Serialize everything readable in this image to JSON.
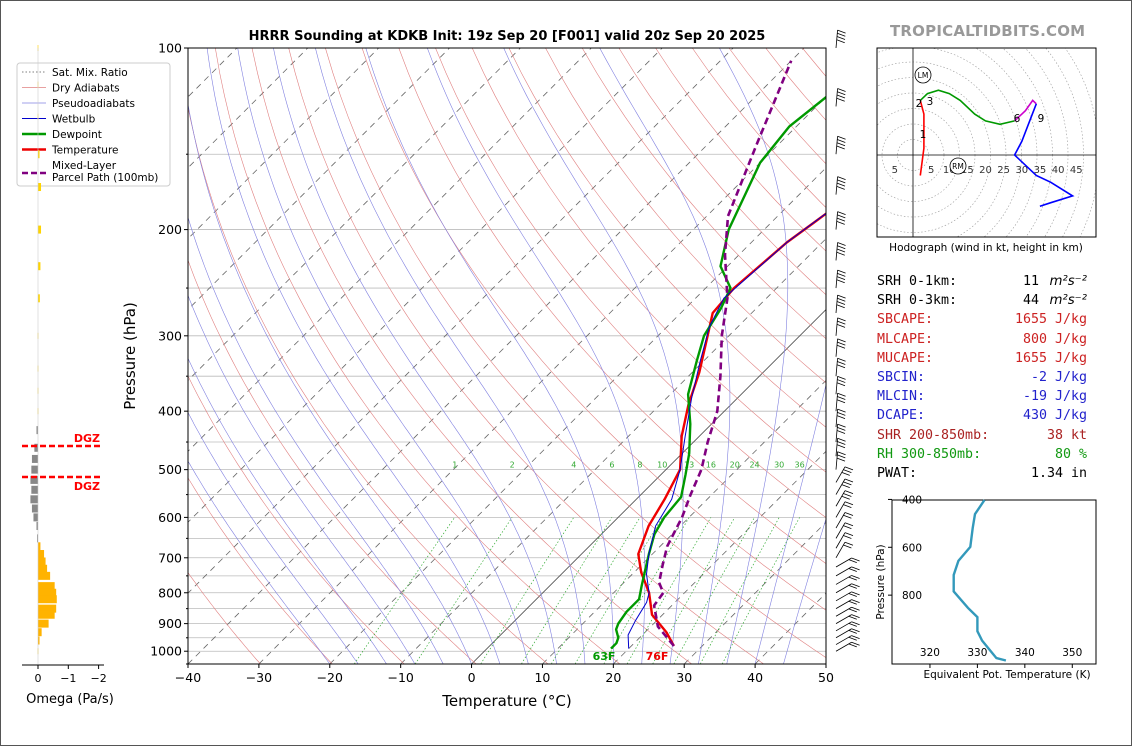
{
  "page": {
    "title": "HRRR Sounding at KDKB Init: 19z Sep 20 [F001] valid 20z Sep 20 2025",
    "brand": "TROPICALTIDBITS.COM"
  },
  "chart_data": [
    {
      "name": "skew-t",
      "type": "line",
      "xlabel": "Temperature (°C)",
      "ylabel": "Pressure (hPa)",
      "xlim": [
        -40,
        50
      ],
      "ylim": [
        1050,
        100
      ],
      "y_scale": "log",
      "x_ticks": [
        "−40",
        "−30",
        "−20",
        "−10",
        "0",
        "10",
        "20",
        "30",
        "40",
        "50"
      ],
      "y_ticks": [
        "100",
        "200",
        "300",
        "400",
        "500",
        "600",
        "700",
        "800",
        "900",
        "1000"
      ],
      "legend": {
        "placement": "top-left",
        "entries": [
          "Sat. Mix. Ratio",
          "Dry Adiabats",
          "Pseudoadiabats",
          "Wetbulb",
          "Dewpoint",
          "Temperature",
          "Mixed-Layer Parcel Path (100mb)"
        ]
      },
      "mixing_ratio_labels": [
        "1",
        "2",
        "4",
        "6",
        "8",
        "10",
        "13",
        "16",
        "20",
        "24",
        "30",
        "36"
      ],
      "surface_labels": {
        "dewpoint": "63F",
        "temperature": "76F"
      },
      "series": [
        {
          "name": "Temperature",
          "color": "#ee0000",
          "points": [
            [
              26,
              980
            ],
            [
              23,
              930
            ],
            [
              18.5,
              870
            ],
            [
              15,
              800
            ],
            [
              11,
              740
            ],
            [
              8,
              690
            ],
            [
              5.5,
              620
            ],
            [
              4,
              560
            ],
            [
              2,
              500
            ],
            [
              -2.5,
              440
            ],
            [
              -6,
              390
            ],
            [
              -9,
              345
            ],
            [
              -13,
              300
            ],
            [
              -15.5,
              275
            ],
            [
              -16,
              250
            ],
            [
              -15,
              210
            ],
            [
              -14,
              195
            ],
            [
              -11,
              155
            ],
            [
              -8,
              125
            ],
            [
              -6,
              110
            ],
            [
              -5,
              100
            ]
          ]
        },
        {
          "name": "Dewpoint",
          "color": "#009900",
          "points": [
            [
              17.5,
              990
            ],
            [
              17.5,
              970
            ],
            [
              17,
              950
            ],
            [
              15.5,
              920
            ],
            [
              15,
              900
            ],
            [
              14.5,
              860
            ],
            [
              14.5,
              820
            ],
            [
              13,
              780
            ],
            [
              11.5,
              740
            ],
            [
              9.5,
              690
            ],
            [
              7.5,
              640
            ],
            [
              6.5,
              600
            ],
            [
              6,
              555
            ],
            [
              3.5,
              510
            ],
            [
              1,
              470
            ],
            [
              -3,
              420
            ],
            [
              -7.5,
              375
            ],
            [
              -11,
              330
            ],
            [
              -13.5,
              300
            ],
            [
              -15,
              270
            ],
            [
              -16.5,
              250
            ],
            [
              -21,
              230
            ],
            [
              -25,
              200
            ],
            [
              -30,
              155
            ],
            [
              -31,
              135
            ],
            [
              -29.5,
              115
            ],
            [
              -27,
              100
            ]
          ]
        },
        {
          "name": "Wetbulb",
          "color": "#0000cc",
          "points": [
            [
              20,
              990
            ],
            [
              18,
              940
            ],
            [
              17,
              890
            ],
            [
              16,
              830
            ],
            [
              15,
              800
            ],
            [
              12,
              745
            ],
            [
              9.5,
              690
            ],
            [
              6.5,
              620
            ],
            [
              5,
              560
            ],
            [
              2,
              500
            ],
            [
              -2,
              440
            ],
            [
              -6.5,
              380
            ],
            [
              -10.5,
              330
            ],
            [
              -14,
              290
            ],
            [
              -16,
              260
            ],
            [
              -15,
              210
            ],
            [
              -11,
              155
            ],
            [
              -7,
              115
            ],
            [
              -5,
              100
            ]
          ]
        },
        {
          "name": "Mixed-Layer Parcel Path (100mb)",
          "color": "#800080",
          "points": [
            [
              26,
              980
            ],
            [
              21,
              910
            ],
            [
              17.5,
              840
            ],
            [
              17,
              800
            ],
            [
              15,
              770
            ],
            [
              13,
              720
            ],
            [
              11,
              670
            ],
            [
              9,
              600
            ],
            [
              7,
              550
            ],
            [
              5,
              500
            ],
            [
              2,
              450
            ],
            [
              -1,
              400
            ],
            [
              -5.5,
              350
            ],
            [
              -11,
              300
            ],
            [
              -15.5,
              260
            ],
            [
              -22,
              220
            ],
            [
              -27,
              190
            ],
            [
              -33,
              145
            ],
            [
              -40,
              105
            ]
          ]
        }
      ]
    },
    {
      "name": "hodograph",
      "type": "line",
      "xlabel": "Hodograph (wind in kt, height in km)",
      "x_ticks": [
        "5",
        "5",
        "10",
        "15",
        "20",
        "25",
        "30",
        "35",
        "40",
        "45"
      ],
      "markers": [
        "LM",
        "RM"
      ],
      "height_labels": [
        "1",
        "2",
        "3",
        "6",
        "9"
      ],
      "segments": [
        {
          "color": "#ff0000",
          "points": [
            [
              2,
              -3
            ],
            [
              3,
              1
            ],
            [
              3,
              3
            ],
            [
              3,
              6
            ],
            [
              2,
              8
            ]
          ]
        },
        {
          "color": "#009900",
          "points": [
            [
              2,
              8
            ],
            [
              4,
              9
            ],
            [
              7,
              9.5
            ],
            [
              10,
              9
            ],
            [
              13,
              8
            ],
            [
              17,
              6
            ],
            [
              20,
              5
            ],
            [
              24,
              4.5
            ],
            [
              28,
              5
            ]
          ]
        },
        {
          "color": "#cc00cc",
          "points": [
            [
              28,
              5
            ],
            [
              31,
              6.5
            ],
            [
              33,
              8
            ],
            [
              34,
              7.5
            ]
          ]
        },
        {
          "color": "#0000ff",
          "points": [
            [
              34,
              7.5
            ],
            [
              30,
              2
            ],
            [
              28,
              0
            ],
            [
              34,
              -3
            ],
            [
              38,
              -4
            ],
            [
              44,
              -6
            ],
            [
              38,
              -7
            ],
            [
              35,
              -7.5
            ]
          ]
        }
      ]
    },
    {
      "name": "omega",
      "type": "bar",
      "xlabel": "Omega (Pa/s)",
      "x_ticks": [
        "0",
        "−1",
        "−2"
      ],
      "xlim": [
        0.3,
        -2.3
      ],
      "dgz_label": "DGZ",
      "dgz_levels": [
        465,
        520
      ],
      "levels": [
        100,
        115,
        130,
        150,
        170,
        200,
        230,
        260,
        300,
        340,
        370,
        400,
        430,
        460,
        480,
        500,
        520,
        540,
        560,
        580,
        600,
        620,
        650,
        670,
        690,
        710,
        730,
        750,
        780,
        800,
        820,
        850,
        870,
        900,
        930,
        960,
        1000
      ],
      "values": [
        0,
        0,
        0,
        -0.05,
        -0.1,
        -0.1,
        -0.08,
        -0.06,
        0,
        0,
        0,
        0,
        0.05,
        0.12,
        0.2,
        0.22,
        0.25,
        0.22,
        0.25,
        0.2,
        0.15,
        0.05,
        0.03,
        -0.08,
        -0.2,
        -0.25,
        -0.3,
        -0.4,
        -0.55,
        -0.6,
        -0.62,
        -0.6,
        -0.55,
        -0.35,
        -0.12,
        -0.05,
        0
      ]
    },
    {
      "name": "theta-e",
      "type": "line",
      "xlabel": "Equivalent Pot. Temperature (K)",
      "ylabel": "Pressure (hPa)",
      "x_ticks": [
        "320",
        "330",
        "340",
        "350"
      ],
      "y_ticks": [
        "400",
        "600",
        "800"
      ],
      "xlim": [
        312,
        355
      ],
      "ylim": [
        1000,
        300
      ],
      "color": "#3399bb",
      "points": [
        [
          331.5,
          300
        ],
        [
          329.5,
          360
        ],
        [
          329,
          420
        ],
        [
          328.5,
          500
        ],
        [
          326,
          560
        ],
        [
          325,
          620
        ],
        [
          325,
          690
        ],
        [
          328,
          760
        ],
        [
          330,
          800
        ],
        [
          330,
          860
        ],
        [
          331,
          900
        ],
        [
          333,
          950
        ],
        [
          334,
          975
        ],
        [
          336,
          985
        ]
      ]
    }
  ],
  "indices": [
    {
      "label": "SRH 0-1km:",
      "value": "11",
      "unit": "m²s⁻²",
      "color": "#000000"
    },
    {
      "label": "SRH 0-3km:",
      "value": "44",
      "unit": "m²s⁻²",
      "color": "#000000"
    },
    {
      "label": "SBCAPE:",
      "value": "1655 J/kg",
      "color": "#cc2222"
    },
    {
      "label": "MLCAPE:",
      "value": "800 J/kg",
      "color": "#cc2222"
    },
    {
      "label": "MUCAPE:",
      "value": "1655 J/kg",
      "color": "#cc2222"
    },
    {
      "label": "SBCIN:",
      "value": "-2 J/kg",
      "color": "#2222cc"
    },
    {
      "label": "MLCIN:",
      "value": "-19 J/kg",
      "color": "#2222cc"
    },
    {
      "label": "DCAPE:",
      "value": "430 J/kg",
      "color": "#2222cc"
    },
    {
      "label": "SHR 200-850mb:",
      "value": "38 kt",
      "color": "#aa2222"
    },
    {
      "label": "RH 300-850mb:",
      "value": "80 %",
      "color": "#119911"
    },
    {
      "label": "PWAT:",
      "value": "1.34 in",
      "color": "#000000"
    }
  ],
  "colors": {
    "temperature": "#ee0000",
    "dewpoint": "#009900",
    "wetbulb": "#0000cc",
    "parcel": "#800080",
    "dry_adiabat": "#e08080",
    "pseudoadiabat": "#8080e0",
    "mixing_ratio": "#33aa33",
    "isotherm": "#333333"
  }
}
